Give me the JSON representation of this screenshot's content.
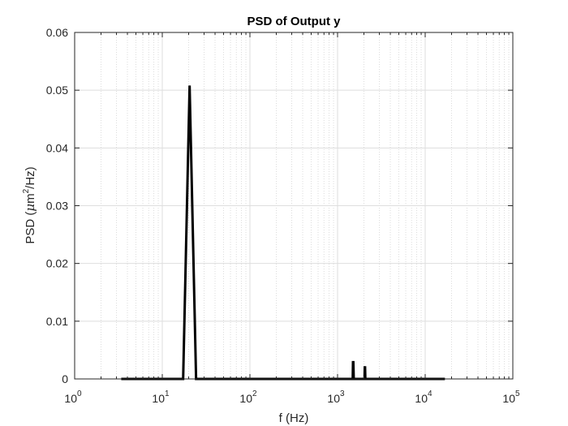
{
  "chart_data": {
    "type": "line",
    "title": "PSD of Output y",
    "xlabel": "f (Hz)",
    "ylabel": {
      "prefix": "PSD (",
      "mu": "μ",
      "unit": "m",
      "sup": "2",
      "suffix": "/Hz)"
    },
    "xscale": "log",
    "xlim": [
      1,
      100000
    ],
    "ylim": [
      0,
      0.06
    ],
    "grid": true,
    "x_ticks": [
      {
        "base": "10",
        "exp": "0",
        "value": 1
      },
      {
        "base": "10",
        "exp": "1",
        "value": 10
      },
      {
        "base": "10",
        "exp": "2",
        "value": 100
      },
      {
        "base": "10",
        "exp": "3",
        "value": 1000
      },
      {
        "base": "10",
        "exp": "4",
        "value": 10000
      },
      {
        "base": "10",
        "exp": "5",
        "value": 100000
      }
    ],
    "y_ticks": [
      {
        "label": "0",
        "value": 0
      },
      {
        "label": "0.01",
        "value": 0.01
      },
      {
        "label": "0.02",
        "value": 0.02
      },
      {
        "label": "0.03",
        "value": 0.03
      },
      {
        "label": "0.04",
        "value": 0.04
      },
      {
        "label": "0.05",
        "value": 0.05
      },
      {
        "label": "0.06",
        "value": 0.06
      }
    ],
    "series": [
      {
        "color": "#000000",
        "x": [
          3.4,
          17.3,
          20.5,
          24.3,
          1490,
          1500,
          1515,
          1530,
          2030,
          2045,
          2060,
          2075,
          16800
        ],
        "y": [
          0,
          0,
          0.0508,
          0,
          0,
          0.0029,
          0.0029,
          0,
          0,
          0.002,
          0.002,
          0,
          0
        ]
      }
    ]
  }
}
